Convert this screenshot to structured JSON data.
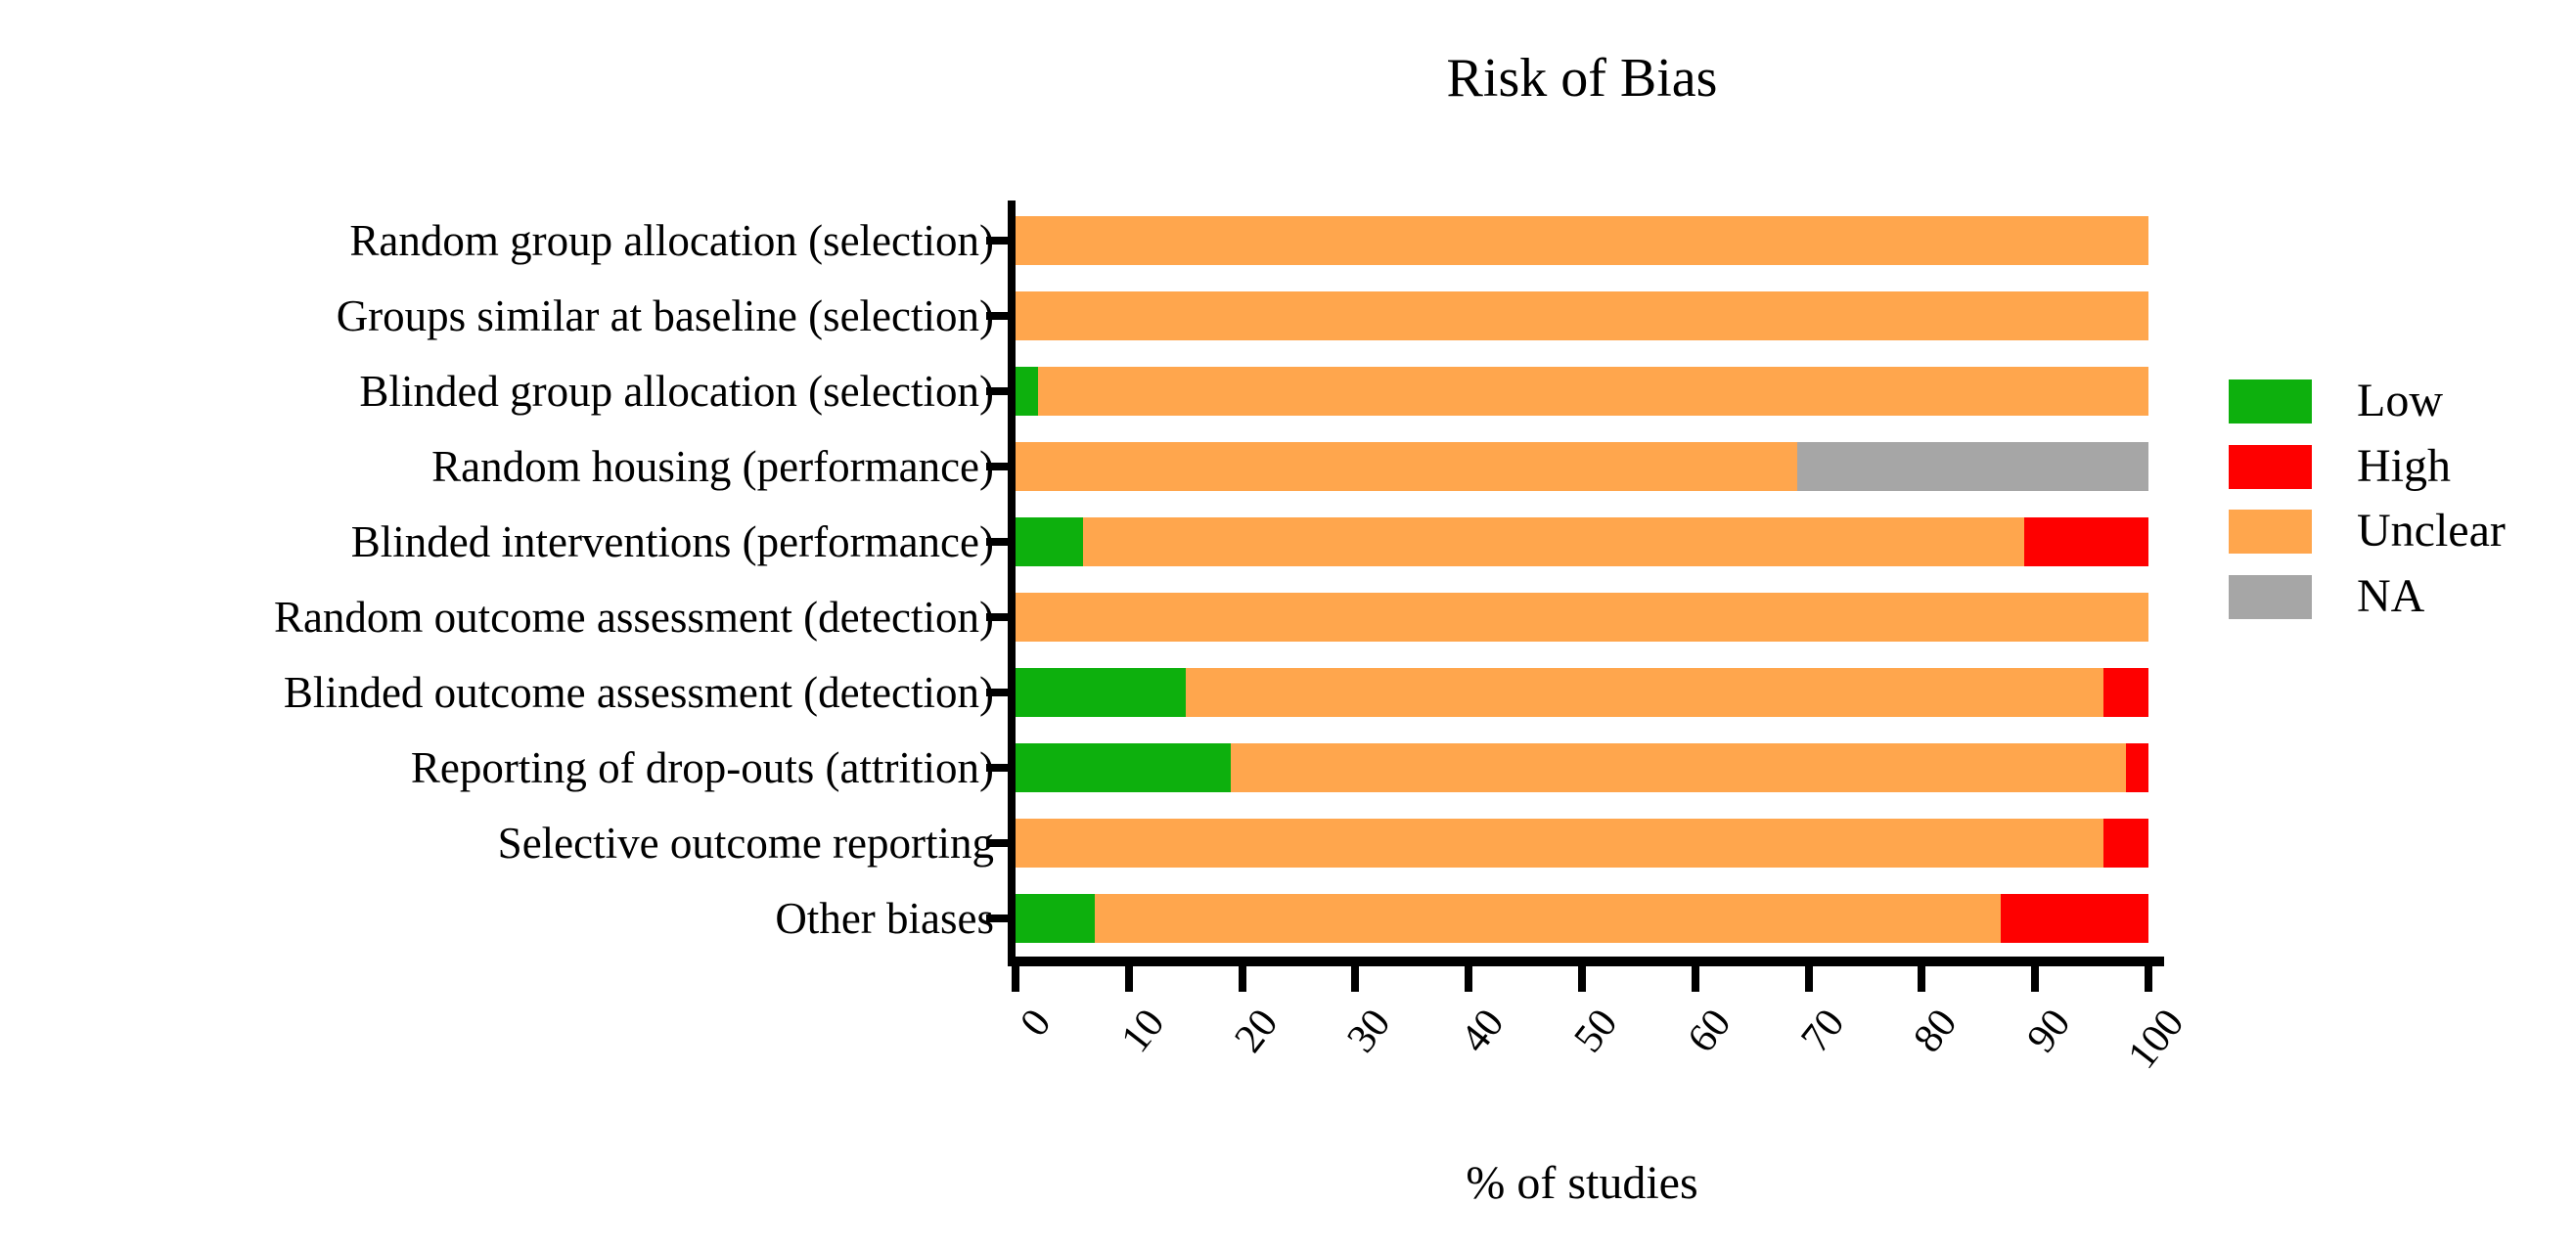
{
  "chart_data": {
    "type": "bar",
    "orientation": "horizontal-stacked",
    "title": "Risk of Bias",
    "xlabel": "% of studies",
    "xlim": [
      0,
      100
    ],
    "xticks": [
      0,
      10,
      20,
      30,
      40,
      50,
      60,
      70,
      80,
      90,
      100
    ],
    "grid": false,
    "axis_color": "#000000",
    "background_color": "#ffffff",
    "categories": [
      "Random group allocation (selection)",
      "Groups similar at baseline (selection)",
      "Blinded group allocation (selection)",
      "Random housing (performance)",
      "Blinded interventions (performance)",
      "Random outcome assessment (detection)",
      "Blinded outcome assessment (detection)",
      "Reporting of drop-outs (attrition)",
      "Selective outcome reporting",
      "Other biases"
    ],
    "series": [
      {
        "name": "Low",
        "color": "#0db00d",
        "values": [
          0,
          0,
          2,
          0,
          6,
          0,
          15,
          19,
          0,
          7
        ]
      },
      {
        "name": "High",
        "color": "#fe0000",
        "values": [
          0,
          0,
          0,
          0,
          11,
          0,
          4,
          2,
          4,
          13
        ]
      },
      {
        "name": "Unclear",
        "color": "#ffa64d",
        "values": [
          100,
          100,
          98,
          69,
          83,
          100,
          81,
          79,
          96,
          80
        ]
      },
      {
        "name": "NA",
        "color": "#a6a6a6",
        "values": [
          0,
          0,
          0,
          31,
          0,
          0,
          0,
          0,
          0,
          0
        ]
      }
    ],
    "stack_order": [
      "Low",
      "Unclear",
      "High",
      "NA"
    ],
    "legend": {
      "position": "right",
      "entries": [
        "Low",
        "High",
        "Unclear",
        "NA"
      ]
    }
  }
}
